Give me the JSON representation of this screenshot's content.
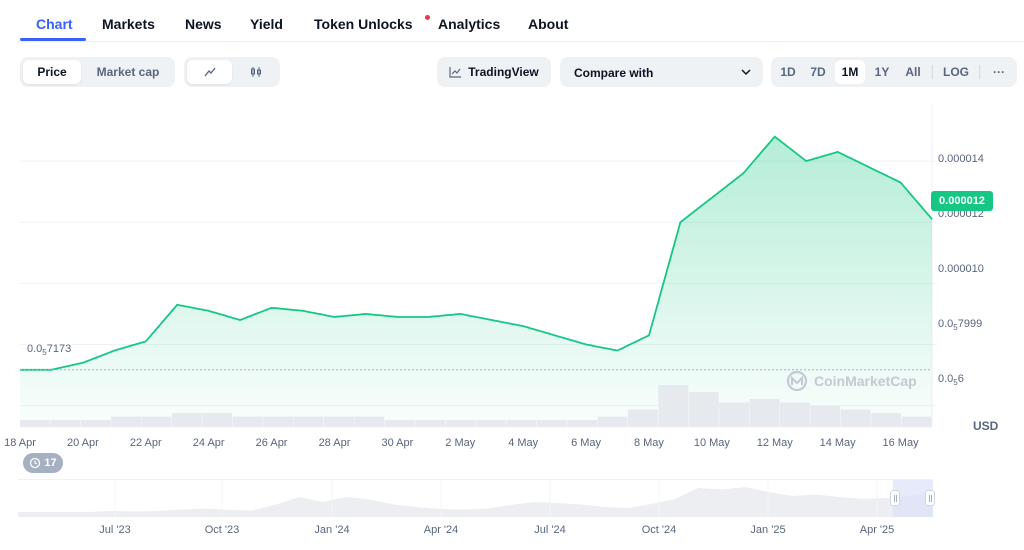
{
  "tabs": [
    {
      "label": "Chart"
    },
    {
      "label": "Markets"
    },
    {
      "label": "News"
    },
    {
      "label": "Yield"
    },
    {
      "label": "Token Unlocks"
    },
    {
      "label": "Analytics"
    },
    {
      "label": "About"
    }
  ],
  "toolbar": {
    "price_label": "Price",
    "market_cap_label": "Market cap",
    "tradingview_label": "TradingView",
    "compare_label": "Compare with",
    "ranges": [
      "1D",
      "7D",
      "1M",
      "1Y",
      "All"
    ],
    "active_range": "1M",
    "log_label": "LOG",
    "more_label": "···"
  },
  "colors": {
    "accent": "#3861fb",
    "up": "#16c784",
    "notification": "#ea3943"
  },
  "chart_data": {
    "type": "area",
    "currency_label": "USD",
    "watermark": "CoinMarketCap",
    "current_price_label": "0.000012",
    "current_price": 1.21e-05,
    "start_value": 7.173e-06,
    "y_ticks": [
      {
        "value": 1.4e-05,
        "label": "0.000014"
      },
      {
        "value": 1.2e-05,
        "label": "0.000012"
      },
      {
        "value": 1e-05,
        "label": "0.000010"
      },
      {
        "value": 7.999e-06,
        "label_main": "0.0",
        "label_sub": "5",
        "label_tail": "7999"
      },
      {
        "value": 6e-06,
        "label_main": "0.0",
        "label_sub": "5",
        "label_tail": "6"
      }
    ],
    "start_label": {
      "main": "0.0",
      "sub": "5",
      "tail": "7173"
    },
    "x_labels": [
      "18 Apr",
      "20 Apr",
      "22 Apr",
      "24 Apr",
      "26 Apr",
      "28 Apr",
      "30 Apr",
      "2 May",
      "4 May",
      "6 May",
      "8 May",
      "10 May",
      "12 May",
      "14 May",
      "16 May"
    ],
    "x": [
      "2025-04-18",
      "2025-04-19",
      "2025-04-20",
      "2025-04-21",
      "2025-04-22",
      "2025-04-23",
      "2025-04-24",
      "2025-04-25",
      "2025-04-26",
      "2025-04-27",
      "2025-04-28",
      "2025-04-29",
      "2025-04-30",
      "2025-05-01",
      "2025-05-02",
      "2025-05-03",
      "2025-05-04",
      "2025-05-05",
      "2025-05-06",
      "2025-05-07",
      "2025-05-08",
      "2025-05-09",
      "2025-05-10",
      "2025-05-11",
      "2025-05-12",
      "2025-05-13",
      "2025-05-14",
      "2025-05-15",
      "2025-05-16",
      "2025-05-17"
    ],
    "series": [
      {
        "values": [
          7.17e-06,
          7.17e-06,
          7.4e-06,
          7.8e-06,
          8.1e-06,
          9.3e-06,
          9.1e-06,
          8.8e-06,
          9.2e-06,
          9.1e-06,
          8.9e-06,
          9e-06,
          8.9e-06,
          8.9e-06,
          9e-06,
          8.8e-06,
          8.6e-06,
          8.3e-06,
          8e-06,
          7.8e-06,
          8.3e-06,
          1.2e-05,
          1.28e-05,
          1.36e-05,
          1.48e-05,
          1.4e-05,
          1.43e-05,
          1.38e-05,
          1.33e-05,
          1.21e-05
        ]
      }
    ],
    "volume": [
      2,
      2,
      2,
      3,
      3,
      4,
      4,
      3,
      3,
      3,
      3,
      3,
      2,
      2,
      2,
      2,
      2,
      2,
      2,
      3,
      5,
      12,
      10,
      7,
      8,
      7,
      6,
      5,
      4,
      3
    ],
    "navigator": {
      "x_labels": [
        "Jul '23",
        "Oct '23",
        "Jan '24",
        "Apr '24",
        "Jul '24",
        "Oct '24",
        "Jan '25",
        "Apr '25"
      ],
      "values": [
        1,
        1,
        1,
        1,
        1.2,
        1.1,
        1.2,
        1.5,
        1.7,
        1.4,
        1.3,
        2.5,
        4,
        3,
        4,
        3.5,
        2.5,
        2,
        1.6,
        1.5,
        1.7,
        2.4,
        3,
        2.8,
        2.5,
        2,
        1.8,
        2.6,
        3.6,
        5.8,
        5.5,
        6,
        5,
        4.2,
        4.5,
        4,
        3.6,
        3.8,
        4.2,
        5
      ]
    },
    "ylim": [
      5.3e-06,
      1.59e-05
    ],
    "legend": "none",
    "grid": true
  }
}
